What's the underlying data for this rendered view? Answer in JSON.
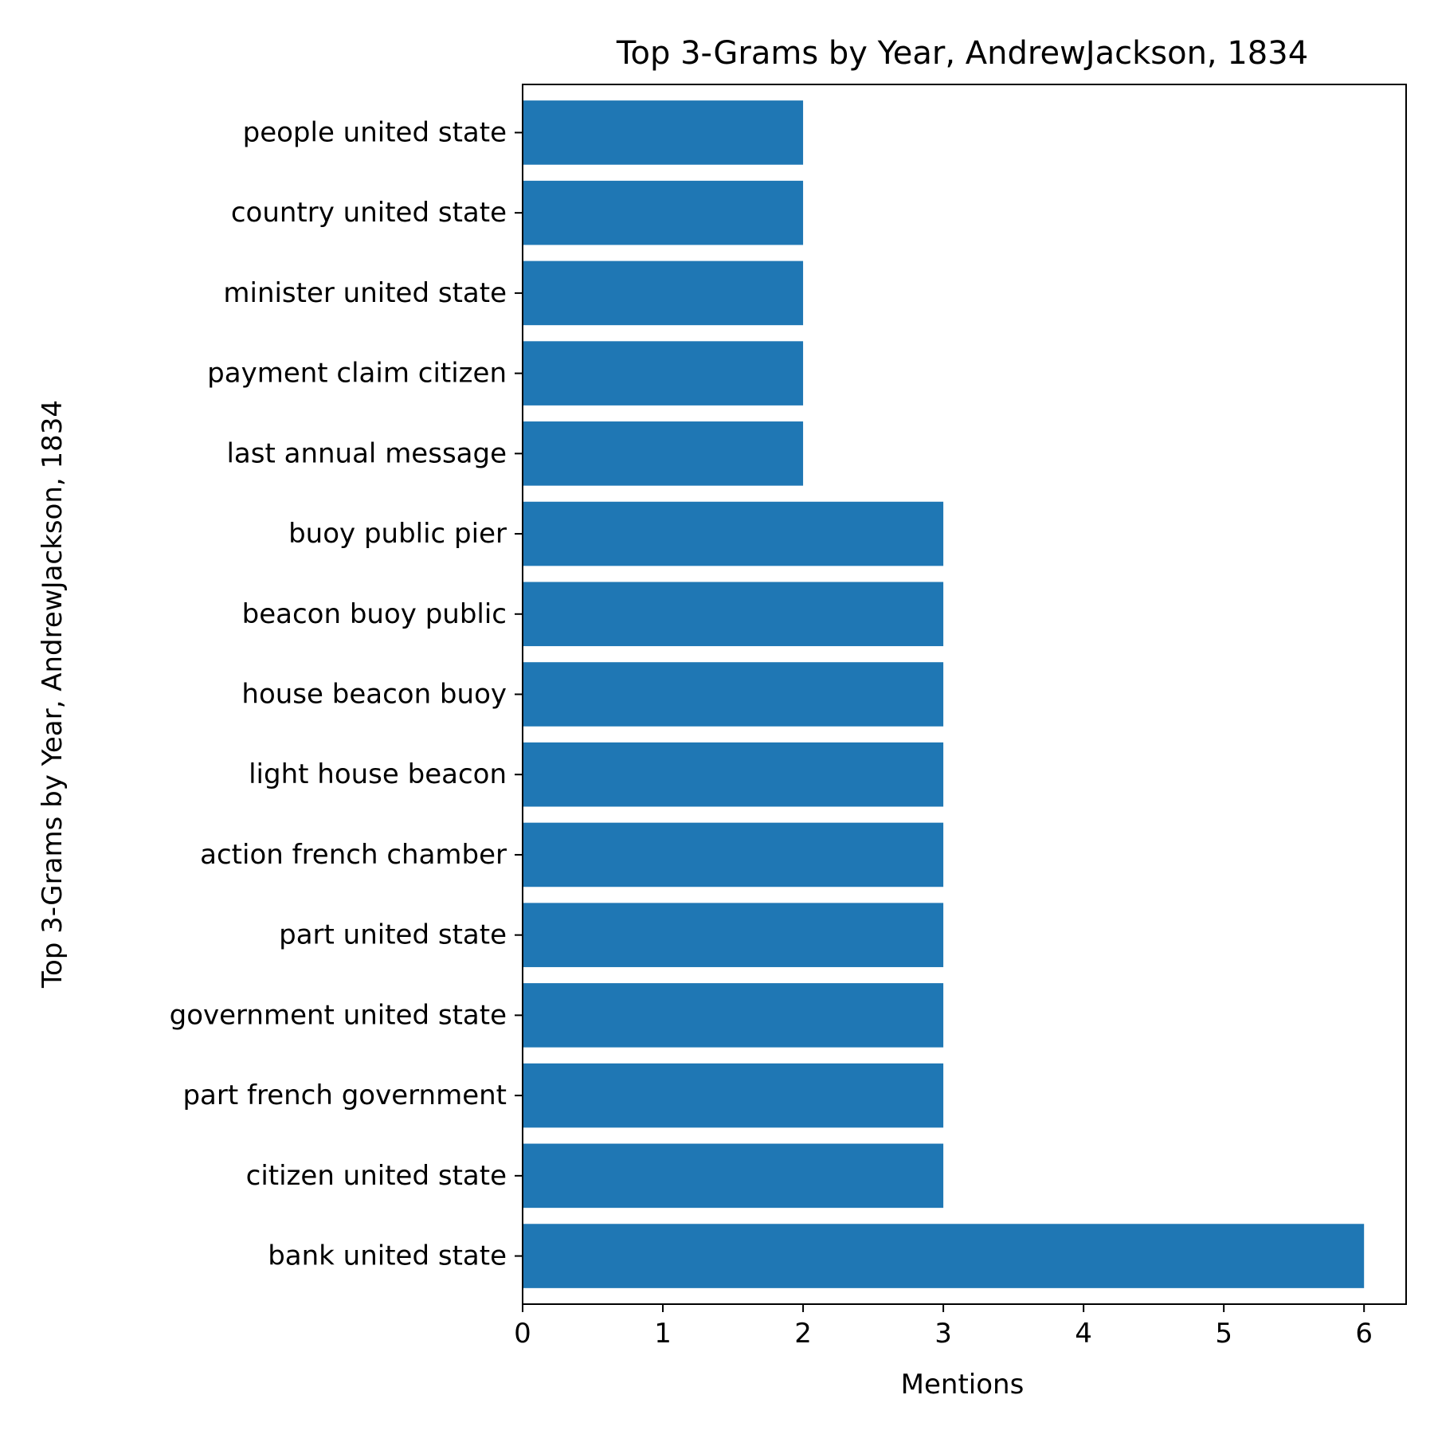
{
  "chart_data": {
    "type": "bar",
    "orientation": "horizontal",
    "title": "Top 3-Grams by Year, AndrewJackson, 1834",
    "xlabel": "Mentions",
    "ylabel": "Top 3-Grams by Year, AndrewJackson, 1834",
    "xlim": [
      0,
      6.3
    ],
    "x_ticks": [
      0,
      1,
      2,
      3,
      4,
      5,
      6
    ],
    "grid": false,
    "bar_color": "#1f77b4",
    "categories": [
      "bank united state",
      "citizen united state",
      "part french government",
      "government united state",
      "part united state",
      "action french chamber",
      "light house beacon",
      "house beacon buoy",
      "beacon buoy public",
      "buoy public pier",
      "last annual message",
      "payment claim citizen",
      "minister united state",
      "country united state",
      "people united state"
    ],
    "values": [
      6,
      3,
      3,
      3,
      3,
      3,
      3,
      3,
      3,
      3,
      2,
      2,
      2,
      2,
      2
    ]
  }
}
